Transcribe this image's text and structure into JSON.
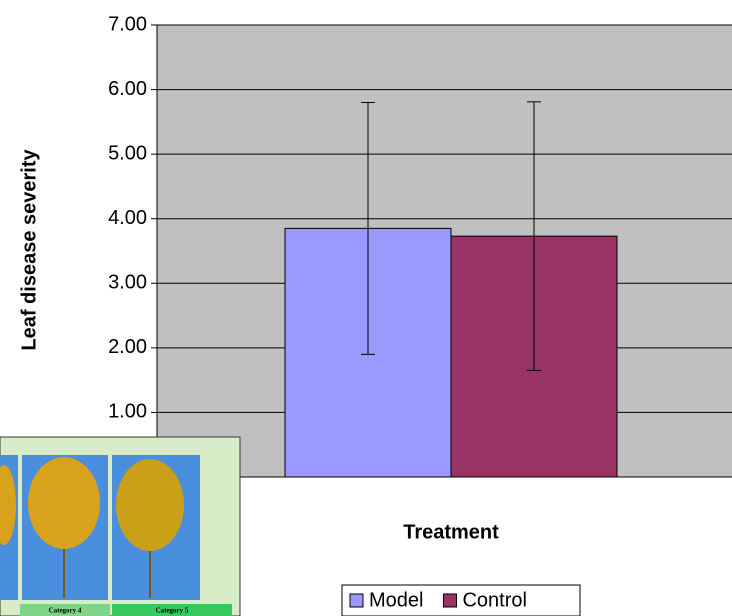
{
  "chart_data": {
    "type": "bar",
    "x_label": "Treatment",
    "y_label": "Leaf disease severity",
    "series": [
      {
        "name": "Model",
        "color": "#9999ff",
        "values": [
          3.85
        ],
        "errors": [
          1.95
        ]
      },
      {
        "name": "Control",
        "color": "#993366",
        "values": [
          3.73
        ],
        "errors": [
          2.08
        ]
      }
    ],
    "ylim": [
      0,
      7
    ],
    "yticks": [
      {
        "value": 1,
        "label": "1.00"
      },
      {
        "value": 2,
        "label": "2.00"
      },
      {
        "value": 3,
        "label": "3.00"
      },
      {
        "value": 4,
        "label": "4.00"
      },
      {
        "value": 5,
        "label": "5.00"
      },
      {
        "value": 6,
        "label": "6.00"
      },
      {
        "value": 7,
        "label": "7.00"
      }
    ],
    "grid": true,
    "legend": "bottom"
  },
  "inset": {
    "labels": [
      "Category 4",
      "Category 5"
    ]
  }
}
